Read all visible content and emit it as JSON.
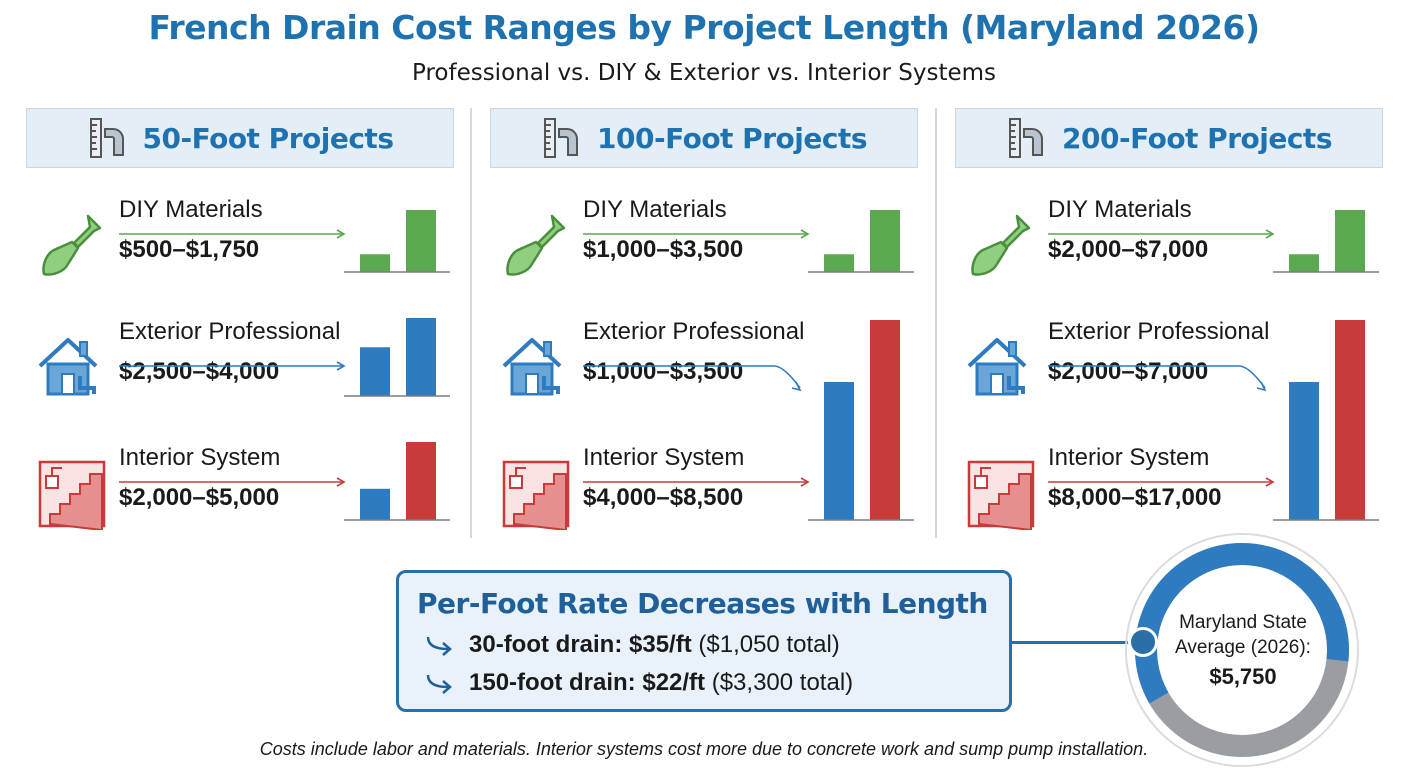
{
  "title": "French Drain Cost Ranges by Project Length (Maryland 2026)",
  "subtitle": "Professional vs. DIY & Exterior vs. Interior Systems",
  "colors": {
    "title": "#1f72b0",
    "diy": "#5aa84f",
    "exterior": "#2f7bbf",
    "interior": "#c83b3b",
    "callout_border": "#2a6fa8",
    "donut_blue": "#2f7bbf",
    "donut_gray": "#9a9ea2"
  },
  "panels": [
    {
      "header": "50-Foot Projects",
      "header_icon": "ruler-pipe-icon",
      "rows": [
        {
          "icon": "shovel-icon",
          "label": "DIY Materials",
          "value": "$500–$1,750"
        },
        {
          "icon": "house-pipe-icon",
          "label": "Exterior Professional",
          "value": "$2,500–$4,000"
        },
        {
          "icon": "basement-stairs-icon",
          "label": "Interior System",
          "value": "$2,000–$5,000"
        }
      ]
    },
    {
      "header": "100-Foot Projects",
      "header_icon": "ruler-pipe-icon",
      "rows": [
        {
          "icon": "shovel-icon",
          "label": "DIY Materials",
          "value": "$1,000–$3,500"
        },
        {
          "icon": "house-pipe-icon",
          "label": "Exterior Professional",
          "value": "$1,000–$3,500"
        },
        {
          "icon": "basement-stairs-icon",
          "label": "Interior System",
          "value": "$4,000–$8,500"
        }
      ]
    },
    {
      "header": "200-Foot Projects",
      "header_icon": "ruler-pipe-icon",
      "rows": [
        {
          "icon": "shovel-icon",
          "label": "DIY Materials",
          "value": "$2,000–$7,000"
        },
        {
          "icon": "house-pipe-icon",
          "label": "Exterior Professional",
          "value": "$2,000–$7,000"
        },
        {
          "icon": "basement-stairs-icon",
          "label": "Interior System",
          "value": "$8,000–$17,000"
        }
      ]
    }
  ],
  "chart_data": [
    {
      "type": "bar",
      "title": "50-Foot Projects",
      "series": [
        {
          "name": "DIY Materials",
          "values": [
            500,
            1750
          ]
        },
        {
          "name": "Exterior Professional",
          "values": [
            2500,
            4000
          ]
        },
        {
          "name": "Interior System",
          "values": [
            2000,
            5000
          ]
        }
      ]
    },
    {
      "type": "bar",
      "title": "100-Foot Projects",
      "series": [
        {
          "name": "DIY Materials",
          "values": [
            1000,
            3500
          ]
        },
        {
          "name": "Exterior Professional",
          "values": [
            1000,
            3500
          ]
        },
        {
          "name": "Interior System",
          "values": [
            4000,
            8500
          ]
        }
      ]
    },
    {
      "type": "bar",
      "title": "200-Foot Projects",
      "series": [
        {
          "name": "DIY Materials",
          "values": [
            2000,
            7000
          ]
        },
        {
          "name": "Exterior Professional",
          "values": [
            2000,
            7000
          ]
        },
        {
          "name": "Interior System",
          "values": [
            8000,
            17000
          ]
        }
      ]
    }
  ],
  "callout": {
    "title": "Per-Foot Rate Decreases with Length",
    "lines": [
      {
        "bold": "30-foot drain: $35/ft",
        "rest": "($1,050 total)"
      },
      {
        "bold": "150-foot drain: $22/ft",
        "rest": "($3,300 total)"
      }
    ]
  },
  "state_average": {
    "label": "Maryland State Average (2026):",
    "value": "$5,750",
    "fill_fraction": 0.6
  },
  "footnote": "Costs include labor and materials. Interior systems cost more due to concrete work and sump pump installation."
}
